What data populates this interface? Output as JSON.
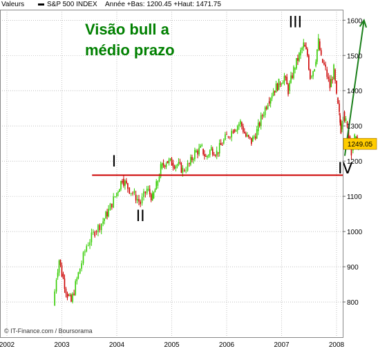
{
  "header": {
    "valeurs_label": "Valeurs",
    "series_name": "S&P 500 INDEX",
    "stats": "Année +Bas: 1200.45 +Haut: 1471.75"
  },
  "footer": {
    "credit": "© IT-Finance.com / Boursorama"
  },
  "colors": {
    "up": "#33cc00",
    "down": "#cc0000",
    "annotation_text": "#008000",
    "support_line": "#cc0000",
    "arrow": "#1a7f1a",
    "grid": "#999999",
    "last_price_bg": "#ffcc00"
  },
  "chart_data": {
    "type": "candlestick",
    "title": "",
    "series_name": "S&P 500 INDEX",
    "x_ticks": [
      "2002",
      "2003",
      "2004",
      "2005",
      "2006",
      "2007",
      "2008"
    ],
    "y_ticks": [
      800,
      900,
      1000,
      1100,
      1200,
      1300,
      1400,
      1500,
      1600
    ],
    "ylim": [
      700,
      1630
    ],
    "y_axis_side": "right",
    "grid": true,
    "last_price": "1249.05",
    "support_level": 1160,
    "headline_line1": "Visão bull a",
    "headline_line2": "médio prazo",
    "wave_labels": [
      {
        "label": "I",
        "date": "2003.95",
        "price": 1185
      },
      {
        "label": "II",
        "date": "2004.43",
        "price": 1030
      },
      {
        "label": "III",
        "date": "2007.25",
        "price": 1580
      },
      {
        "label": "IV",
        "date": "2008.16",
        "price": 1165
      }
    ],
    "projection_arrow": {
      "from_date": "2008.15",
      "from_price": 1215,
      "to_date": "2008.5",
      "to_price": 1600
    },
    "path_points": [
      [
        2002.84,
        790
      ],
      [
        2002.9,
        870
      ],
      [
        2002.95,
        920
      ],
      [
        2003.0,
        880
      ],
      [
        2003.1,
        820
      ],
      [
        2003.17,
        800
      ],
      [
        2003.3,
        880
      ],
      [
        2003.45,
        960
      ],
      [
        2003.6,
        1000
      ],
      [
        2003.75,
        1030
      ],
      [
        2003.85,
        1060
      ],
      [
        2004.0,
        1110
      ],
      [
        2004.1,
        1150
      ],
      [
        2004.2,
        1125
      ],
      [
        2004.32,
        1105
      ],
      [
        2004.43,
        1080
      ],
      [
        2004.55,
        1120
      ],
      [
        2004.65,
        1095
      ],
      [
        2004.72,
        1130
      ],
      [
        2004.8,
        1180
      ],
      [
        2004.9,
        1200
      ],
      [
        2005.0,
        1195
      ],
      [
        2005.1,
        1190
      ],
      [
        2005.2,
        1175
      ],
      [
        2005.32,
        1190
      ],
      [
        2005.42,
        1225
      ],
      [
        2005.55,
        1235
      ],
      [
        2005.62,
        1210
      ],
      [
        2005.72,
        1235
      ],
      [
        2005.82,
        1225
      ],
      [
        2005.92,
        1250
      ],
      [
        2006.0,
        1270
      ],
      [
        2006.12,
        1290
      ],
      [
        2006.25,
        1310
      ],
      [
        2006.35,
        1270
      ],
      [
        2006.45,
        1255
      ],
      [
        2006.55,
        1285
      ],
      [
        2006.65,
        1330
      ],
      [
        2006.75,
        1370
      ],
      [
        2006.85,
        1400
      ],
      [
        2006.95,
        1420
      ],
      [
        2007.05,
        1440
      ],
      [
        2007.12,
        1400
      ],
      [
        2007.22,
        1460
      ],
      [
        2007.32,
        1500
      ],
      [
        2007.4,
        1530
      ],
      [
        2007.47,
        1500
      ],
      [
        2007.52,
        1440
      ],
      [
        2007.6,
        1470
      ],
      [
        2007.67,
        1540
      ],
      [
        2007.72,
        1490
      ],
      [
        2007.8,
        1460
      ],
      [
        2007.88,
        1410
      ],
      [
        2007.95,
        1460
      ],
      [
        2008.0,
        1380
      ],
      [
        2008.05,
        1330
      ],
      [
        2008.08,
        1290
      ],
      [
        2008.12,
        1340
      ],
      [
        2008.17,
        1310
      ],
      [
        2008.22,
        1270
      ],
      [
        2008.27,
        1230
      ],
      [
        2008.33,
        1265
      ],
      [
        2008.4,
        1240
      ]
    ]
  }
}
